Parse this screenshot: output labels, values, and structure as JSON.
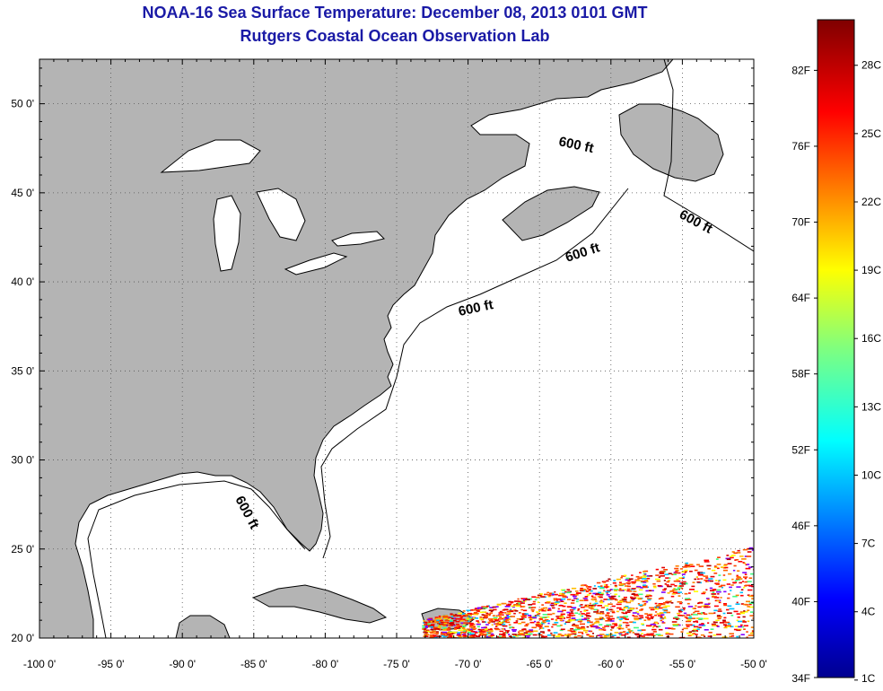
{
  "title_line1": "NOAA-16 Sea Surface Temperature:  December 08, 2013 0101 GMT",
  "title_line2": "Rutgers Coastal Ocean Observation Lab",
  "map": {
    "lon_range": [
      -100,
      -50
    ],
    "lat_range": [
      20,
      52.5
    ],
    "lon_ticks": [
      "-100 0'",
      "-95 0'",
      "-90 0'",
      "-85 0'",
      "-80 0'",
      "-75 0'",
      "-70 0'",
      "-65 0'",
      "-60 0'",
      "-55 0'",
      "-50 0'"
    ],
    "lat_ticks": [
      "20 0'",
      "25 0'",
      "30 0'",
      "35 0'",
      "40 0'",
      "45 0'",
      "50 0'"
    ],
    "contour_label": "600 ft",
    "land_color": "#b4b4b4",
    "ocean_color": "#ffffff"
  },
  "colorbar": {
    "fahrenheit_labels": [
      "34F",
      "40F",
      "46F",
      "52F",
      "58F",
      "64F",
      "70F",
      "76F",
      "82F"
    ],
    "celsius_labels": [
      "1C",
      "4C",
      "7C",
      "10C",
      "13C",
      "16C",
      "19C",
      "22C",
      "25C",
      "28C"
    ]
  }
}
